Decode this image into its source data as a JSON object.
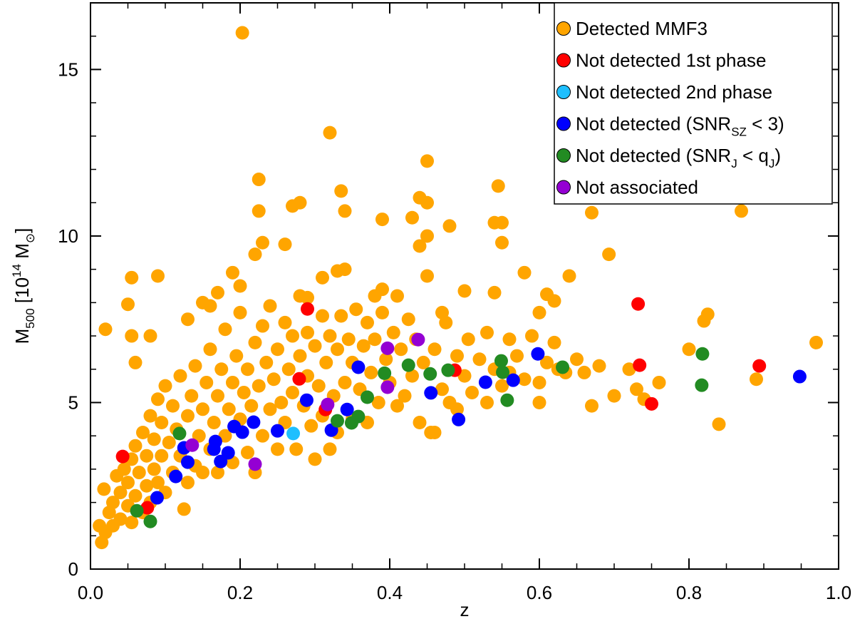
{
  "chart_data": {
    "type": "scatter",
    "xlabel": "z",
    "ylabel": [
      {
        "text": "M"
      },
      {
        "sub": "500"
      },
      {
        "text": " [10"
      },
      {
        "sup": "14"
      },
      {
        "text": " M"
      },
      {
        "sub": "⊙"
      },
      {
        "text": "]"
      }
    ],
    "xlim": [
      0,
      1.0
    ],
    "ylim": [
      0,
      17
    ],
    "xticks": [
      {
        "value": 0,
        "label": "0.0"
      },
      {
        "value": 0.2,
        "label": "0.2"
      },
      {
        "value": 0.4,
        "label": "0.4"
      },
      {
        "value": 0.6,
        "label": "0.6"
      },
      {
        "value": 0.8,
        "label": "0.8"
      },
      {
        "value": 1.0,
        "label": "1.0"
      }
    ],
    "yticks": [
      0,
      5,
      10,
      15
    ],
    "xminorticks": [
      0.05,
      0.1,
      0.15,
      0.25,
      0.3,
      0.35,
      0.45,
      0.5,
      0.55,
      0.65,
      0.7,
      0.75,
      0.85,
      0.9,
      0.95
    ],
    "yminorticks": [
      1,
      2,
      3,
      4,
      6,
      7,
      8,
      9,
      11,
      12,
      13,
      14,
      16,
      17
    ],
    "legend": "upper right",
    "series": [
      {
        "name": "Detected MMF3",
        "color": "#FFA500",
        "x": [
          0.015,
          0.012,
          0.02,
          0.018,
          0.025,
          0.03,
          0.03,
          0.035,
          0.04,
          0.04,
          0.045,
          0.05,
          0.05,
          0.055,
          0.055,
          0.06,
          0.06,
          0.065,
          0.07,
          0.07,
          0.075,
          0.075,
          0.08,
          0.08,
          0.085,
          0.085,
          0.09,
          0.09,
          0.095,
          0.095,
          0.1,
          0.1,
          0.105,
          0.11,
          0.11,
          0.115,
          0.12,
          0.12,
          0.125,
          0.13,
          0.13,
          0.135,
          0.14,
          0.14,
          0.145,
          0.15,
          0.15,
          0.155,
          0.16,
          0.16,
          0.165,
          0.17,
          0.17,
          0.175,
          0.18,
          0.18,
          0.185,
          0.19,
          0.19,
          0.195,
          0.2,
          0.2,
          0.205,
          0.21,
          0.21,
          0.215,
          0.22,
          0.22,
          0.225,
          0.23,
          0.23,
          0.235,
          0.24,
          0.24,
          0.245,
          0.25,
          0.25,
          0.255,
          0.26,
          0.26,
          0.265,
          0.27,
          0.27,
          0.275,
          0.28,
          0.285,
          0.29,
          0.29,
          0.295,
          0.3,
          0.3,
          0.305,
          0.31,
          0.31,
          0.315,
          0.32,
          0.32,
          0.325,
          0.33,
          0.33,
          0.335,
          0.34,
          0.345,
          0.35,
          0.35,
          0.355,
          0.36,
          0.365,
          0.37,
          0.37,
          0.375,
          0.38,
          0.385,
          0.39,
          0.395,
          0.4,
          0.405,
          0.41,
          0.415,
          0.42,
          0.425,
          0.43,
          0.435,
          0.44,
          0.445,
          0.455,
          0.46,
          0.47,
          0.475,
          0.48,
          0.49,
          0.49,
          0.5,
          0.505,
          0.51,
          0.52,
          0.53,
          0.53,
          0.54,
          0.55,
          0.56,
          0.56,
          0.57,
          0.58,
          0.59,
          0.6,
          0.61,
          0.62,
          0.625,
          0.635,
          0.203,
          0.32,
          0.225,
          0.45,
          0.27,
          0.28,
          0.225,
          0.23,
          0.26,
          0.335,
          0.34,
          0.39,
          0.44,
          0.45,
          0.43,
          0.44,
          0.45,
          0.48,
          0.545,
          0.54,
          0.55,
          0.55,
          0.67,
          0.87,
          0.693,
          0.54,
          0.58,
          0.61,
          0.64,
          0.6,
          0.62,
          0.65,
          0.67,
          0.68,
          0.7,
          0.72,
          0.73,
          0.74,
          0.76,
          0.8,
          0.82,
          0.825,
          0.84,
          0.89,
          0.97,
          0.5,
          0.47,
          0.45,
          0.41,
          0.38,
          0.39,
          0.34,
          0.33,
          0.31,
          0.29,
          0.28,
          0.22,
          0.2,
          0.19,
          0.17,
          0.09,
          0.055,
          0.05,
          0.02,
          0.15,
          0.16,
          0.13,
          0.055,
          0.06,
          0.08,
          0.46,
          0.6,
          0.66
        ],
        "values": [
          0.8,
          1.3,
          1.1,
          2.4,
          1.7,
          2.0,
          1.3,
          2.8,
          2.3,
          1.5,
          3.0,
          1.9,
          2.6,
          3.3,
          1.4,
          2.2,
          3.7,
          2.9,
          4.1,
          1.7,
          3.4,
          2.5,
          4.6,
          2.0,
          3.0,
          3.9,
          5.1,
          2.6,
          4.4,
          3.4,
          2.3,
          5.5,
          3.8,
          4.9,
          2.9,
          4.2,
          3.4,
          5.8,
          1.8,
          4.6,
          2.6,
          5.2,
          3.1,
          6.1,
          4.0,
          4.8,
          2.9,
          5.6,
          3.6,
          6.6,
          4.4,
          5.2,
          2.9,
          6.0,
          4.0,
          7.2,
          4.8,
          5.6,
          3.2,
          6.4,
          4.5,
          7.7,
          5.3,
          3.5,
          6.0,
          4.9,
          6.8,
          2.9,
          5.5,
          7.3,
          4.0,
          6.2,
          4.8,
          7.9,
          5.7,
          3.6,
          6.6,
          5.0,
          7.4,
          4.4,
          6.0,
          5.3,
          7.0,
          3.6,
          6.4,
          4.9,
          7.1,
          5.8,
          4.3,
          6.7,
          3.3,
          5.5,
          7.6,
          4.6,
          6.2,
          3.6,
          7.0,
          5.2,
          6.6,
          4.1,
          7.6,
          5.6,
          6.9,
          4.5,
          6.2,
          7.8,
          5.4,
          6.7,
          4.4,
          7.4,
          5.9,
          6.9,
          5.0,
          7.7,
          6.3,
          5.6,
          7.1,
          4.9,
          6.6,
          5.2,
          7.5,
          5.8,
          6.9,
          4.4,
          6.2,
          4.1,
          6.6,
          5.4,
          7.4,
          5.0,
          4.8,
          6.4,
          5.8,
          6.9,
          5.3,
          6.3,
          5.0,
          7.1,
          6.0,
          5.5,
          6.9,
          5.9,
          6.4,
          5.7,
          7.0,
          5.6,
          6.2,
          6.8,
          6.0,
          5.9,
          16.1,
          13.1,
          11.7,
          12.25,
          10.9,
          11.0,
          10.75,
          9.8,
          9.75,
          11.35,
          10.75,
          10.5,
          11.15,
          11.0,
          10.55,
          9.7,
          10.0,
          10.3,
          11.5,
          10.4,
          10.4,
          9.8,
          10.7,
          10.75,
          9.45,
          8.3,
          8.9,
          8.25,
          8.8,
          7.7,
          8.05,
          6.3,
          4.9,
          6.1,
          5.2,
          6.0,
          5.4,
          5.1,
          5.6,
          6.6,
          7.45,
          7.65,
          4.35,
          5.7,
          6.8,
          8.35,
          7.7,
          8.8,
          8.2,
          8.2,
          8.4,
          9.0,
          8.95,
          8.75,
          8.15,
          8.2,
          9.45,
          8.5,
          8.9,
          8.3,
          8.8,
          8.75,
          7.95,
          7.2,
          8.0,
          7.9,
          7.5,
          7.0,
          6.2,
          7.0,
          4.1,
          5.0,
          5.9
        ]
      },
      {
        "name": "Not detected 1st phase",
        "color": "#FF0000",
        "x": [
          0.043,
          0.076,
          0.29,
          0.279,
          0.314,
          0.487,
          0.732,
          0.734,
          0.75,
          0.894
        ],
        "values": [
          3.38,
          1.84,
          7.81,
          5.71,
          4.79,
          5.97,
          7.96,
          6.12,
          4.96,
          6.1
        ]
      },
      {
        "name": "Not detected 2nd phase",
        "color": "#1EBFFF",
        "x": [
          0.271
        ],
        "values": [
          4.07
        ]
      },
      {
        "name": [
          {
            "text": "Not detected (SNR"
          },
          {
            "sub": "SZ"
          },
          {
            "text": " < 3)"
          }
        ],
        "color": "#0000FF",
        "x": [
          0.089,
          0.114,
          0.13,
          0.125,
          0.167,
          0.165,
          0.174,
          0.184,
          0.192,
          0.203,
          0.218,
          0.25,
          0.289,
          0.322,
          0.343,
          0.358,
          0.455,
          0.492,
          0.528,
          0.565,
          0.598,
          0.948
        ],
        "values": [
          2.14,
          2.78,
          3.21,
          3.64,
          3.83,
          3.6,
          3.23,
          3.49,
          4.28,
          4.11,
          4.41,
          4.15,
          5.07,
          4.17,
          4.79,
          6.06,
          5.29,
          4.49,
          5.61,
          5.67,
          6.46,
          5.78
        ]
      },
      {
        "name": [
          {
            "text": "Not detected (SNR"
          },
          {
            "sub": "J"
          },
          {
            "text": " < q"
          },
          {
            "sub": "J"
          },
          {
            "text": ")"
          }
        ],
        "color": "#228B22",
        "x": [
          0.119,
          0.062,
          0.08,
          0.33,
          0.349,
          0.358,
          0.37,
          0.393,
          0.425,
          0.454,
          0.478,
          0.549,
          0.551,
          0.557,
          0.631,
          0.818,
          0.817
        ],
        "values": [
          4.07,
          1.75,
          1.43,
          4.45,
          4.39,
          4.58,
          5.16,
          5.88,
          6.12,
          5.86,
          5.97,
          6.25,
          5.91,
          5.07,
          6.06,
          6.46,
          5.52
        ]
      },
      {
        "name": "Not associated",
        "color": "#9400D3",
        "x": [
          0.136,
          0.22,
          0.317,
          0.397,
          0.397,
          0.438
        ],
        "values": [
          3.72,
          3.15,
          4.94,
          6.63,
          5.46,
          6.89
        ]
      }
    ]
  }
}
